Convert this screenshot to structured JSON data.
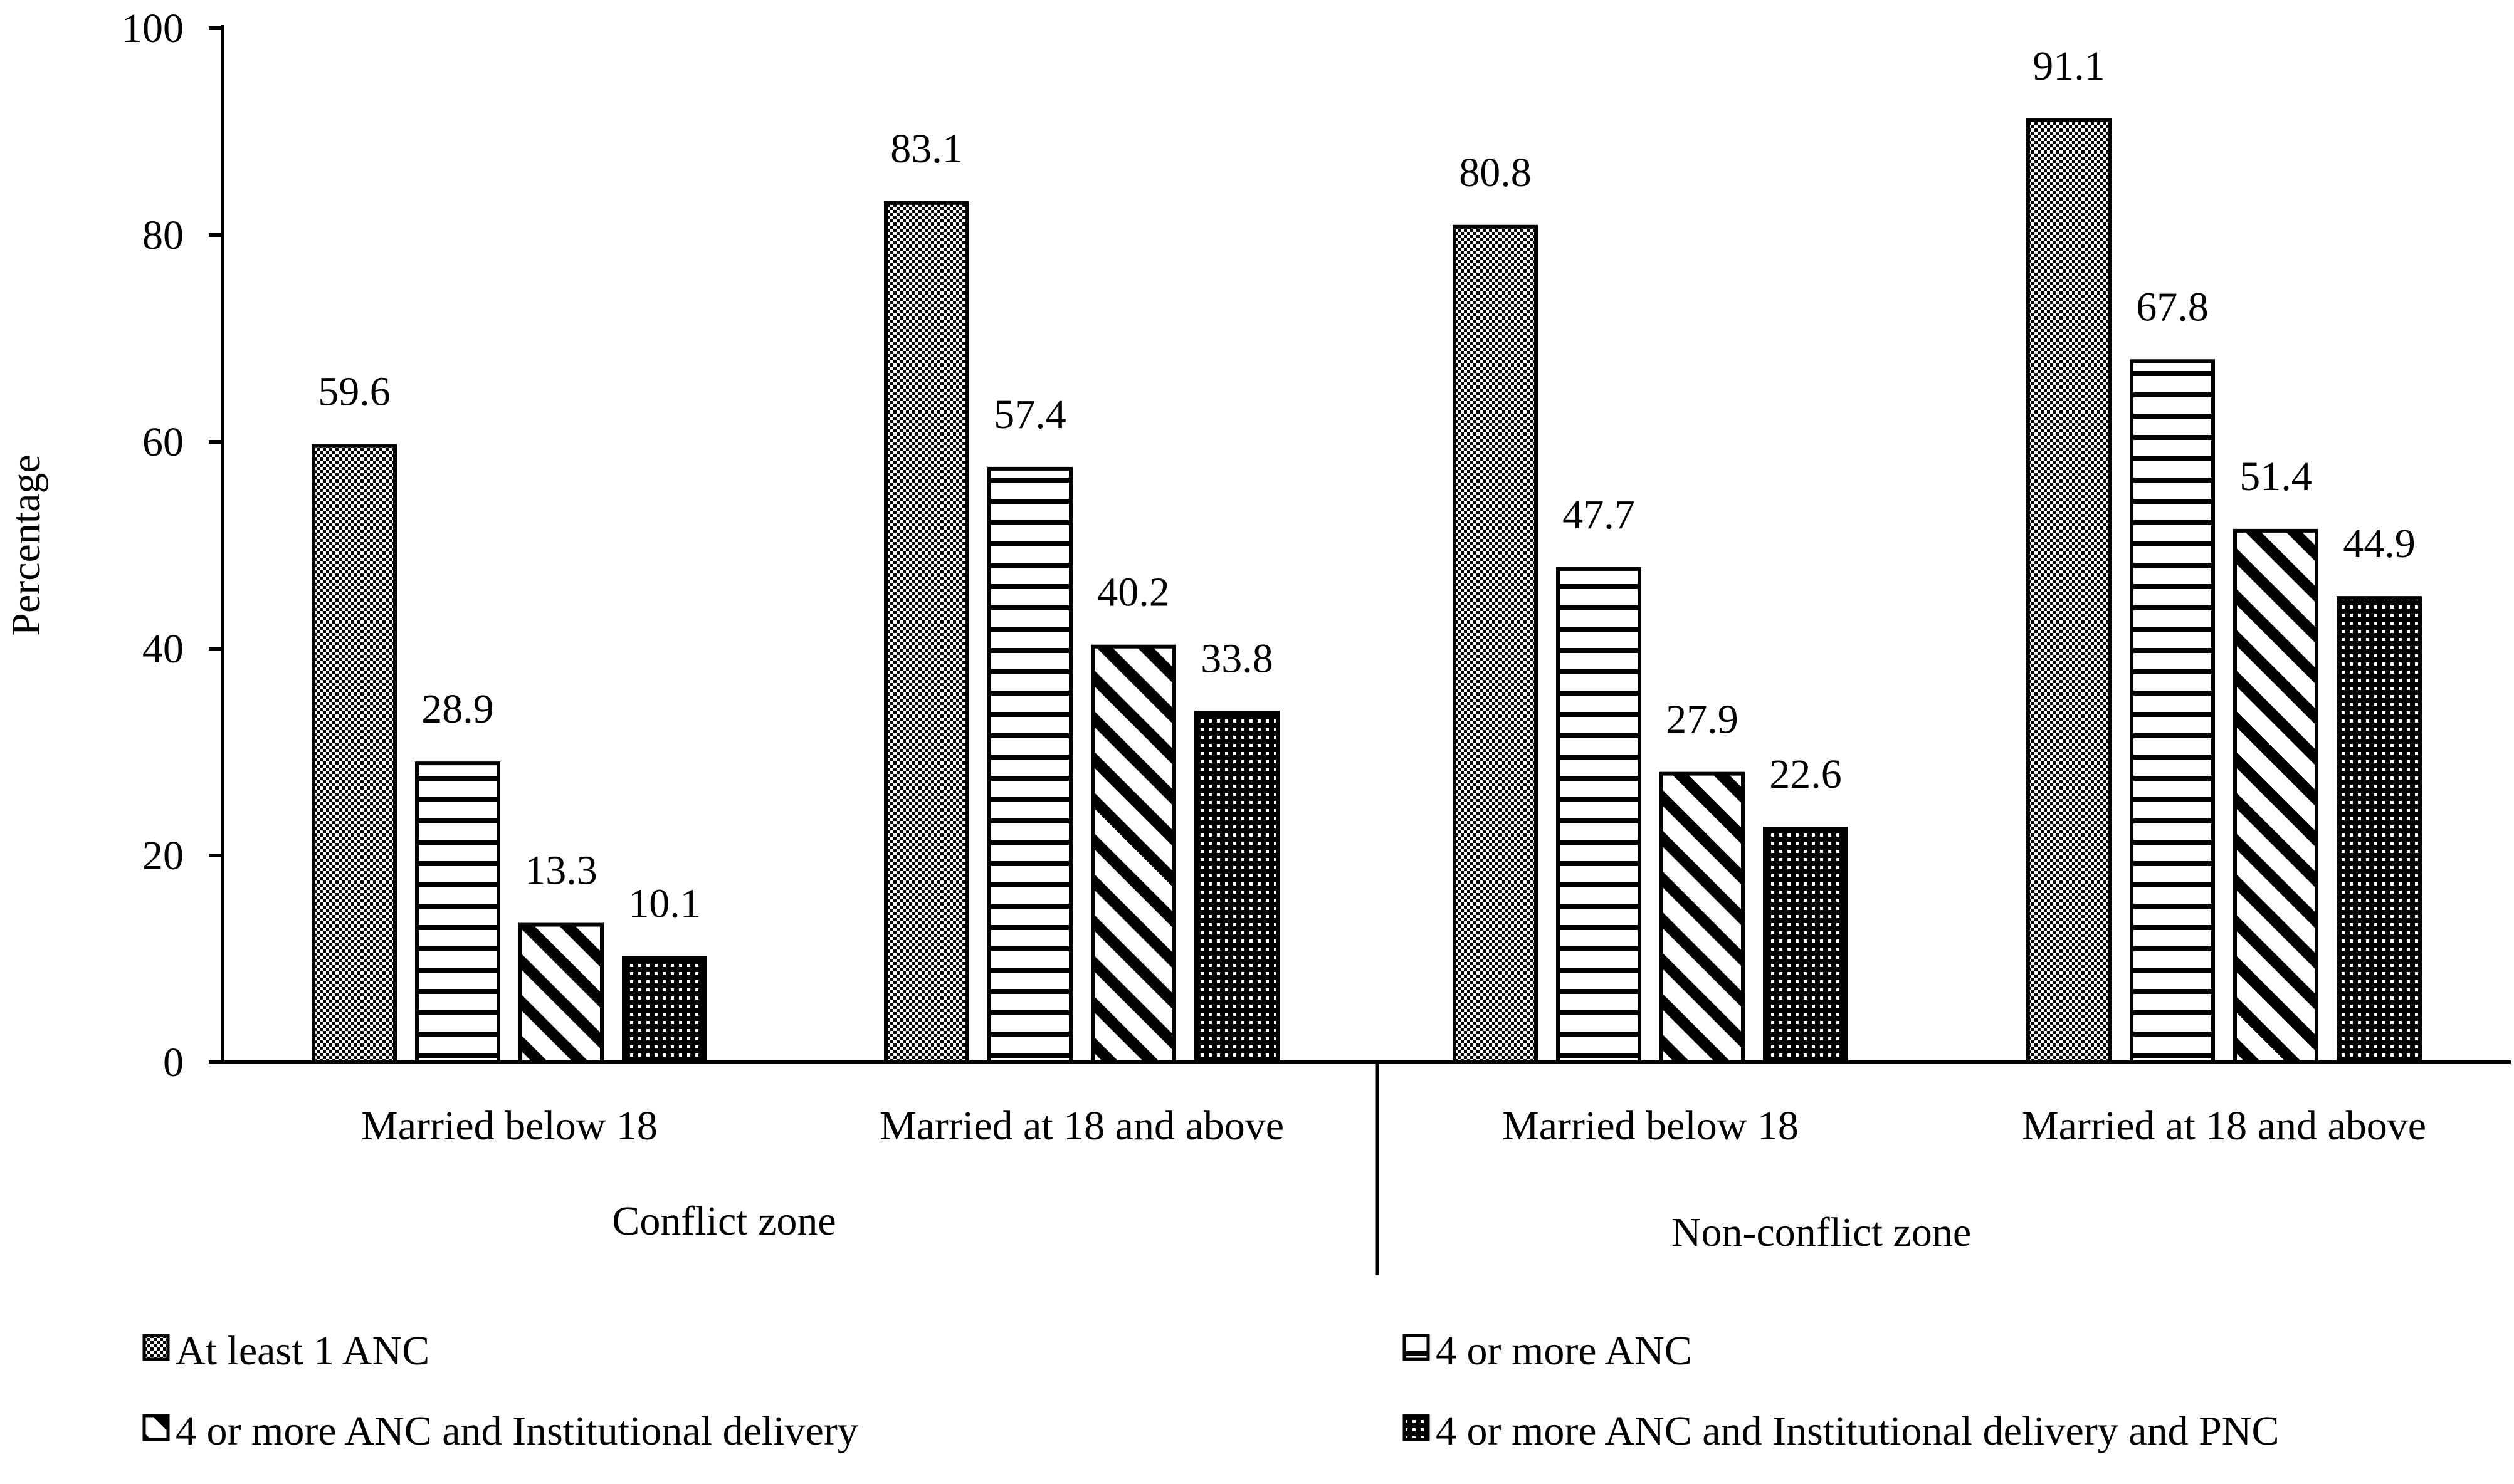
{
  "chart_data": {
    "type": "bar",
    "title": "",
    "ylabel": "Percentage",
    "xlabel": "",
    "ylim": [
      0,
      100
    ],
    "yticks": [
      0,
      20,
      40,
      60,
      80,
      100
    ],
    "grid": false,
    "legend_position": "bottom",
    "groups": [
      {
        "label": "Conflict zone",
        "categories": [
          "Married below 18",
          "Married at 18 and above"
        ]
      },
      {
        "label": "Non-conflict zone",
        "categories": [
          "Married below 18",
          "Married at 18 and above"
        ]
      }
    ],
    "categories": [
      "Married below 18",
      "Married at 18 and above",
      "Married below 18",
      "Married at 18 and above"
    ],
    "series": [
      {
        "name": "At least 1 ANC",
        "pattern": "checker",
        "values": [
          59.6,
          83.1,
          80.8,
          91.1
        ]
      },
      {
        "name": "4 or more ANC",
        "pattern": "horizontal-stripes",
        "values": [
          28.9,
          57.4,
          47.7,
          67.8
        ]
      },
      {
        "name": "4 or more ANC and Institutional delivery",
        "pattern": "diagonal-stripes",
        "values": [
          13.3,
          40.2,
          27.9,
          51.4
        ]
      },
      {
        "name": "4 or more ANC and Institutional delivery and PNC",
        "pattern": "dots",
        "values": [
          10.1,
          33.8,
          22.6,
          44.9
        ]
      }
    ],
    "colors": {
      "ink": "#000000",
      "background": "#ffffff"
    }
  }
}
